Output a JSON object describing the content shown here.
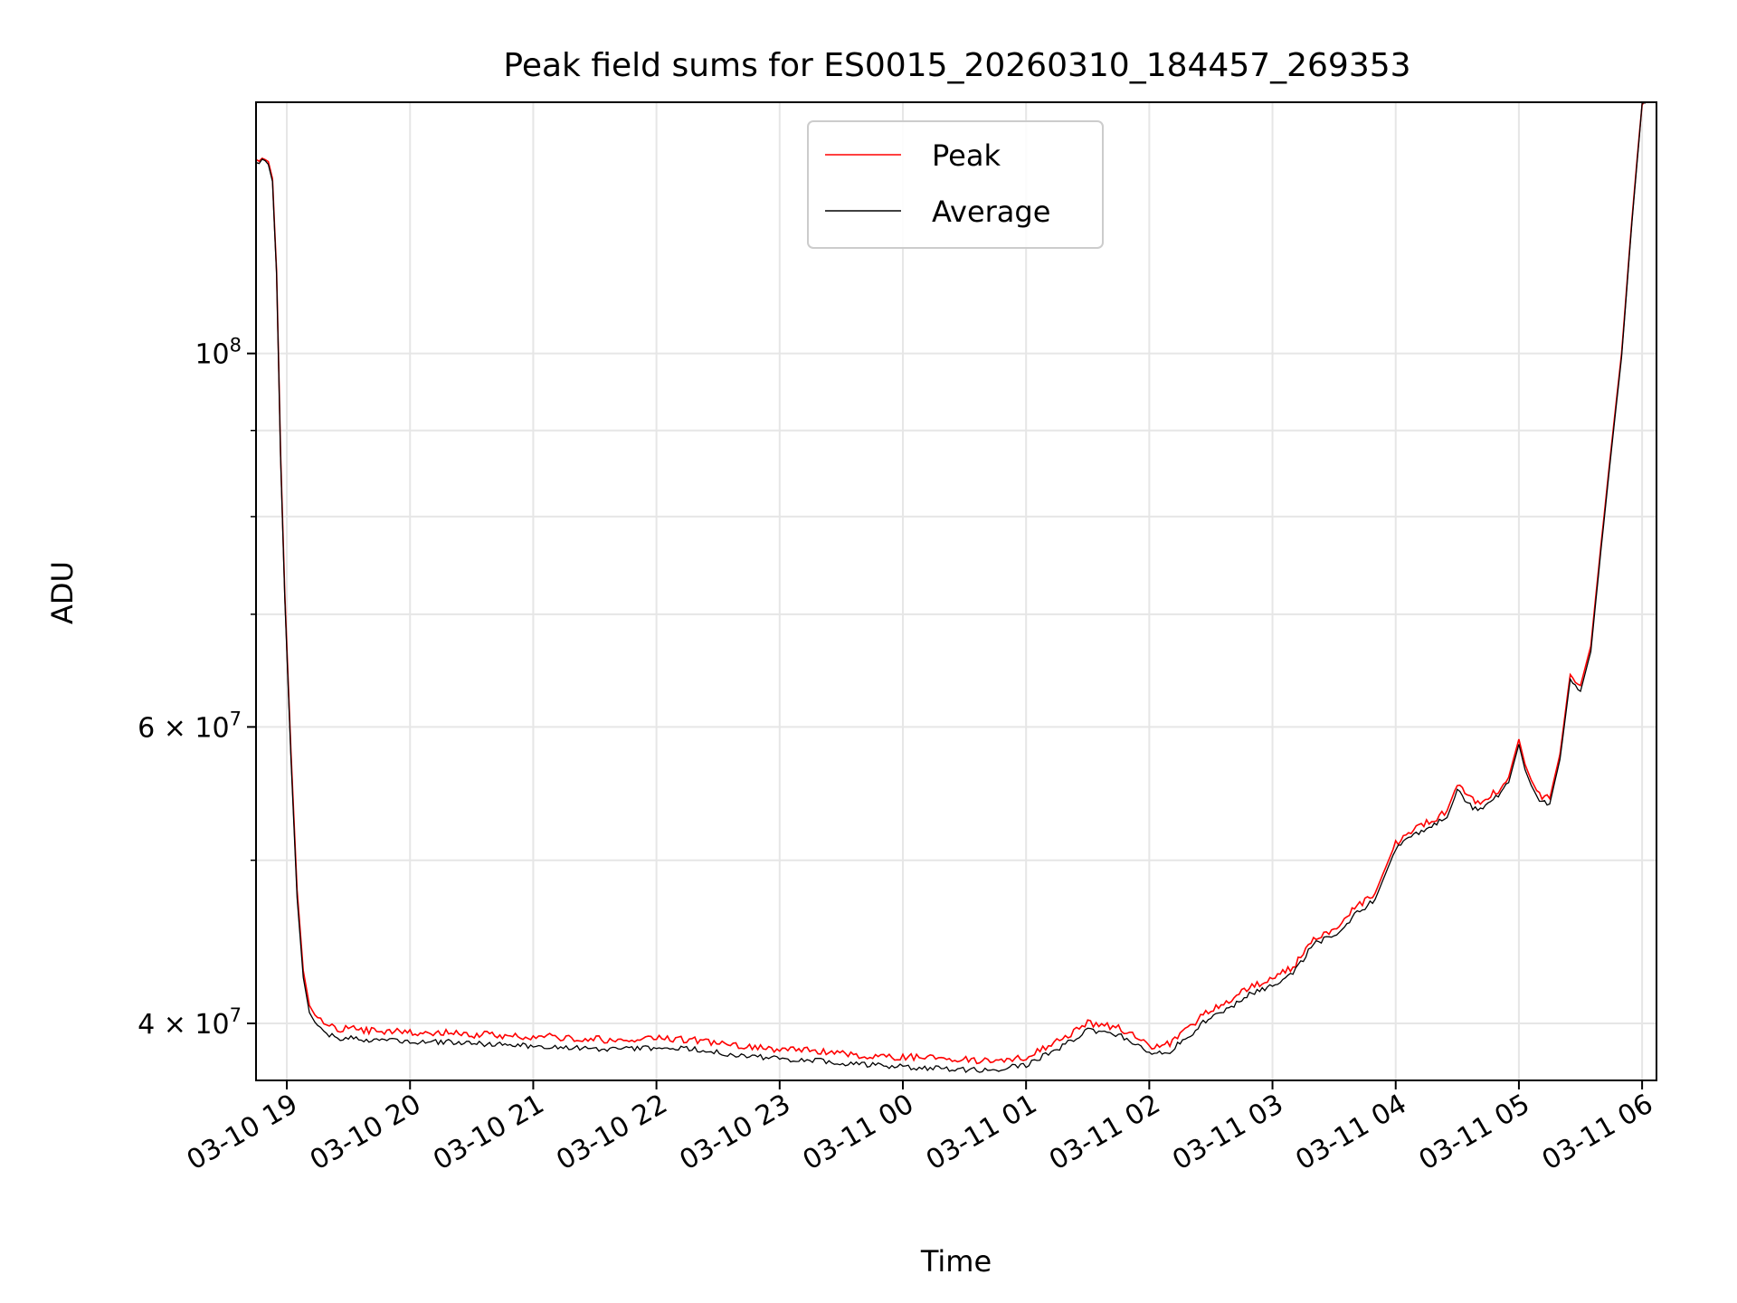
{
  "chart_data": {
    "type": "line",
    "title": "Peak field sums for ES0015_20260310_184457_269353",
    "xlabel": "Time",
    "ylabel": "ADU",
    "y_scale": "log",
    "ylim": [
      37000000,
      141000000
    ],
    "xlim": [
      "2026-03-10 18:45",
      "2026-03-11 06:07"
    ],
    "grid": true,
    "legend": "upper center",
    "x_ticks": [
      {
        "t": "2026-03-10 19:00",
        "label": "03-10 19"
      },
      {
        "t": "2026-03-10 20:00",
        "label": "03-10 20"
      },
      {
        "t": "2026-03-10 21:00",
        "label": "03-10 21"
      },
      {
        "t": "2026-03-10 22:00",
        "label": "03-10 22"
      },
      {
        "t": "2026-03-10 23:00",
        "label": "03-10 23"
      },
      {
        "t": "2026-03-11 00:00",
        "label": "03-11 00"
      },
      {
        "t": "2026-03-11 01:00",
        "label": "03-11 01"
      },
      {
        "t": "2026-03-11 02:00",
        "label": "03-11 02"
      },
      {
        "t": "2026-03-11 03:00",
        "label": "03-11 03"
      },
      {
        "t": "2026-03-11 04:00",
        "label": "03-11 04"
      },
      {
        "t": "2026-03-11 05:00",
        "label": "03-11 05"
      },
      {
        "t": "2026-03-11 06:00",
        "label": "03-11 06"
      }
    ],
    "y_ticks_major": [
      {
        "v": 100000000,
        "base": "10",
        "exp": "8",
        "coef": ""
      },
      {
        "v": 60000000,
        "base": "10",
        "exp": "7",
        "coef": "6 × "
      },
      {
        "v": 40000000,
        "base": "10",
        "exp": "7",
        "coef": "4 × "
      }
    ],
    "y_ticks_minor": [
      50000000,
      70000000,
      80000000,
      90000000
    ],
    "series": [
      {
        "name": "Peak",
        "color": "#ff0000",
        "x": [
          "2026-03-10 18:45",
          "2026-03-10 18:48",
          "2026-03-10 18:51",
          "2026-03-10 18:53",
          "2026-03-10 18:55",
          "2026-03-10 18:57",
          "2026-03-10 18:59",
          "2026-03-10 19:02",
          "2026-03-10 19:05",
          "2026-03-10 19:08",
          "2026-03-10 19:11",
          "2026-03-10 19:15",
          "2026-03-10 19:18",
          "2026-03-10 19:22",
          "2026-03-10 19:26",
          "2026-03-10 19:30",
          "2026-03-10 19:40",
          "2026-03-10 19:50",
          "2026-03-10 20:00",
          "2026-03-10 20:10",
          "2026-03-10 20:20",
          "2026-03-10 20:30",
          "2026-03-10 20:40",
          "2026-03-10 20:50",
          "2026-03-10 21:00",
          "2026-03-10 21:20",
          "2026-03-10 21:40",
          "2026-03-10 22:00",
          "2026-03-10 22:20",
          "2026-03-10 22:40",
          "2026-03-10 23:00",
          "2026-03-10 23:20",
          "2026-03-10 23:40",
          "2026-03-11 00:00",
          "2026-03-11 00:20",
          "2026-03-11 00:40",
          "2026-03-11 01:00",
          "2026-03-11 01:15",
          "2026-03-11 01:30",
          "2026-03-11 01:45",
          "2026-03-11 02:00",
          "2026-03-11 02:10",
          "2026-03-11 02:20",
          "2026-03-11 02:30",
          "2026-03-11 02:40",
          "2026-03-11 02:50",
          "2026-03-11 03:00",
          "2026-03-11 03:10",
          "2026-03-11 03:20",
          "2026-03-11 03:30",
          "2026-03-11 03:40",
          "2026-03-11 03:50",
          "2026-03-11 04:00",
          "2026-03-11 04:10",
          "2026-03-11 04:20",
          "2026-03-11 04:25",
          "2026-03-11 04:30",
          "2026-03-11 04:35",
          "2026-03-11 04:40",
          "2026-03-11 04:45",
          "2026-03-11 04:50",
          "2026-03-11 04:55",
          "2026-03-11 05:00",
          "2026-03-11 05:03",
          "2026-03-11 05:06",
          "2026-03-11 05:10",
          "2026-03-11 05:15",
          "2026-03-11 05:20",
          "2026-03-11 05:25",
          "2026-03-11 05:30",
          "2026-03-11 05:35",
          "2026-03-11 05:40",
          "2026-03-11 05:45",
          "2026-03-11 05:50",
          "2026-03-11 05:55",
          "2026-03-11 06:00",
          "2026-03-11 06:03"
        ],
        "values": [
          130000000,
          131000000,
          130000000,
          127000000,
          112000000,
          87000000,
          72000000,
          58000000,
          48000000,
          43000000,
          41000000,
          40200000,
          40000000,
          39800000,
          39700000,
          39700000,
          39600000,
          39600000,
          39500000,
          39500000,
          39500000,
          39400000,
          39400000,
          39300000,
          39300000,
          39200000,
          39100000,
          39200000,
          39100000,
          38800000,
          38600000,
          38500000,
          38300000,
          38200000,
          38100000,
          38000000,
          38200000,
          39000000,
          40000000,
          39800000,
          38800000,
          38900000,
          39800000,
          40800000,
          41300000,
          42100000,
          42500000,
          43200000,
          45000000,
          45500000,
          46800000,
          47800000,
          51200000,
          52200000,
          53000000,
          53500000,
          55500000,
          54500000,
          54000000,
          54500000,
          55000000,
          56000000,
          59000000,
          57000000,
          55800000,
          54600000,
          54400000,
          57800000,
          64500000,
          63500000,
          67000000,
          77000000,
          88000000,
          100000000,
          120000000,
          141000000,
          142000000
        ]
      },
      {
        "name": "Average",
        "color": "#000000",
        "x": [
          "2026-03-10 18:45",
          "2026-03-10 18:48",
          "2026-03-10 18:51",
          "2026-03-10 18:53",
          "2026-03-10 18:55",
          "2026-03-10 18:57",
          "2026-03-10 18:59",
          "2026-03-10 19:02",
          "2026-03-10 19:05",
          "2026-03-10 19:08",
          "2026-03-10 19:11",
          "2026-03-10 19:15",
          "2026-03-10 19:18",
          "2026-03-10 19:22",
          "2026-03-10 19:26",
          "2026-03-10 19:30",
          "2026-03-10 19:40",
          "2026-03-10 19:50",
          "2026-03-10 20:00",
          "2026-03-10 20:10",
          "2026-03-10 20:20",
          "2026-03-10 20:30",
          "2026-03-10 20:40",
          "2026-03-10 20:50",
          "2026-03-10 21:00",
          "2026-03-10 21:20",
          "2026-03-10 21:40",
          "2026-03-10 22:00",
          "2026-03-10 22:20",
          "2026-03-10 22:40",
          "2026-03-10 23:00",
          "2026-03-10 23:20",
          "2026-03-10 23:40",
          "2026-03-11 00:00",
          "2026-03-11 00:20",
          "2026-03-11 00:40",
          "2026-03-11 01:00",
          "2026-03-11 01:15",
          "2026-03-11 01:30",
          "2026-03-11 01:45",
          "2026-03-11 02:00",
          "2026-03-11 02:10",
          "2026-03-11 02:20",
          "2026-03-11 02:30",
          "2026-03-11 02:40",
          "2026-03-11 02:50",
          "2026-03-11 03:00",
          "2026-03-11 03:10",
          "2026-03-11 03:20",
          "2026-03-11 03:30",
          "2026-03-11 03:40",
          "2026-03-11 03:50",
          "2026-03-11 04:00",
          "2026-03-11 04:10",
          "2026-03-11 04:20",
          "2026-03-11 04:25",
          "2026-03-11 04:30",
          "2026-03-11 04:35",
          "2026-03-11 04:40",
          "2026-03-11 04:45",
          "2026-03-11 04:50",
          "2026-03-11 04:55",
          "2026-03-11 05:00",
          "2026-03-11 05:03",
          "2026-03-11 05:06",
          "2026-03-11 05:10",
          "2026-03-11 05:15",
          "2026-03-11 05:20",
          "2026-03-11 05:25",
          "2026-03-11 05:30",
          "2026-03-11 05:35",
          "2026-03-11 05:40",
          "2026-03-11 05:45",
          "2026-03-11 05:50",
          "2026-03-11 05:55",
          "2026-03-11 06:00",
          "2026-03-11 06:03"
        ],
        "values": [
          129500000,
          130500000,
          129500000,
          126500000,
          111500000,
          86500000,
          71500000,
          57500000,
          47500000,
          42600000,
          40600000,
          39800000,
          39500000,
          39300000,
          39200000,
          39200000,
          39100000,
          39100000,
          39000000,
          39000000,
          39000000,
          38900000,
          38900000,
          38800000,
          38800000,
          38700000,
          38600000,
          38700000,
          38600000,
          38300000,
          38100000,
          38000000,
          37800000,
          37700000,
          37600000,
          37500000,
          37800000,
          38600000,
          39600000,
          39400000,
          38400000,
          38500000,
          39400000,
          40400000,
          40900000,
          41700000,
          42100000,
          42800000,
          44600000,
          45100000,
          46400000,
          47400000,
          50800000,
          51800000,
          52600000,
          53000000,
          55000000,
          54000000,
          53500000,
          54000000,
          54600000,
          55600000,
          58600000,
          56600000,
          55400000,
          54200000,
          54000000,
          57400000,
          64000000,
          63000000,
          66500000,
          76500000,
          87500000,
          99500000,
          119500000,
          140500000,
          141500000
        ]
      }
    ]
  }
}
